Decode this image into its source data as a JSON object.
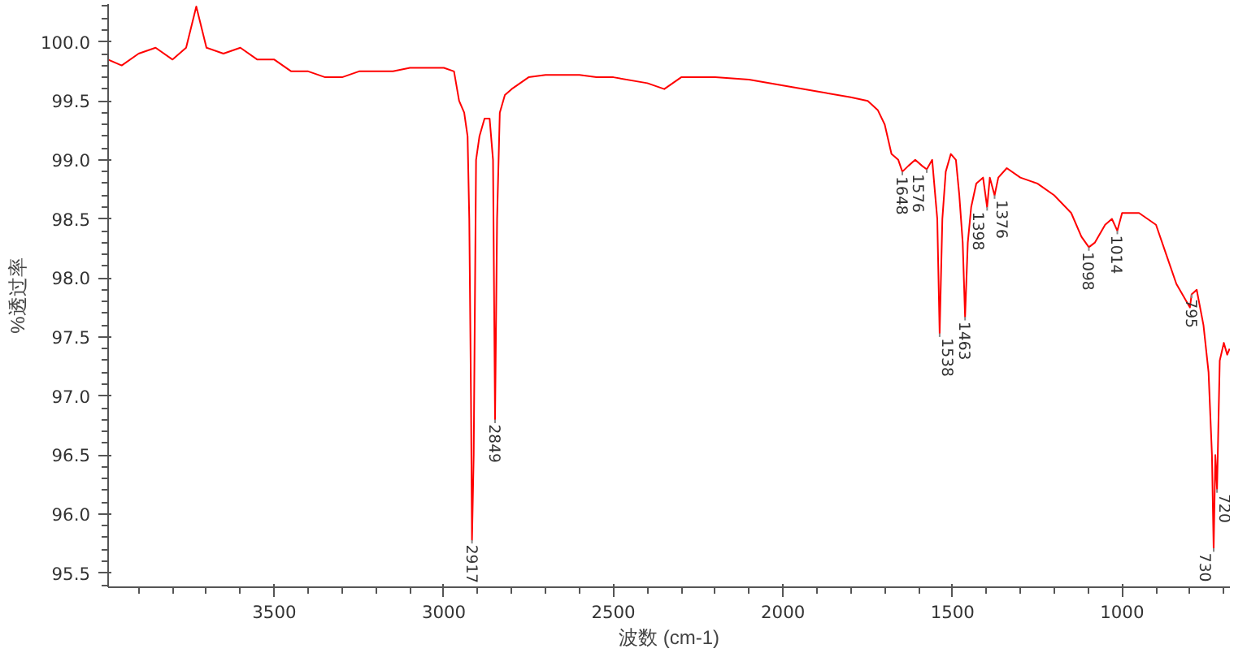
{
  "chart_data": {
    "type": "line",
    "xlabel": "波数 (cm-1)",
    "ylabel": "%透过率",
    "xlim": [
      3990,
      682
    ],
    "ylim": [
      95.38,
      100.32
    ],
    "xticks": [
      3500,
      3000,
      2500,
      2000,
      1500,
      1000
    ],
    "yticks": [
      {
        "value": 95.5,
        "label": "95.5"
      },
      {
        "value": 96,
        "label": "96.0"
      },
      {
        "value": 96.5,
        "label": "96.5"
      },
      {
        "value": 97,
        "label": "97.0"
      },
      {
        "value": 97.5,
        "label": "97.5"
      },
      {
        "value": 98,
        "label": "98.0"
      },
      {
        "value": 98.5,
        "label": "98.5"
      },
      {
        "value": 99,
        "label": "99.0"
      },
      {
        "value": 99.5,
        "label": "99.5"
      },
      {
        "value": 100,
        "label": "100.0"
      }
    ],
    "grid": false,
    "marker": "none",
    "line_style": "solid",
    "series": [
      {
        "color": "#ff0000",
        "x": [
          3990,
          3950,
          3900,
          3850,
          3800,
          3760,
          3730,
          3700,
          3650,
          3600,
          3550,
          3500,
          3450,
          3400,
          3350,
          3300,
          3250,
          3200,
          3150,
          3100,
          3050,
          3000,
          2970,
          2955,
          2940,
          2930,
          2925,
          2920,
          2917,
          2912,
          2905,
          2895,
          2880,
          2865,
          2855,
          2849,
          2843,
          2835,
          2820,
          2800,
          2750,
          2700,
          2600,
          2550,
          2500,
          2400,
          2350,
          2300,
          2200,
          2100,
          2000,
          1900,
          1800,
          1750,
          1720,
          1700,
          1680,
          1660,
          1648,
          1630,
          1610,
          1590,
          1576,
          1560,
          1545,
          1538,
          1530,
          1520,
          1505,
          1490,
          1480,
          1470,
          1463,
          1455,
          1445,
          1430,
          1410,
          1398,
          1390,
          1376,
          1365,
          1340,
          1300,
          1250,
          1200,
          1150,
          1120,
          1098,
          1080,
          1050,
          1030,
          1014,
          1000,
          950,
          900,
          870,
          840,
          800,
          795,
          780,
          760,
          745,
          735,
          730,
          725,
          720,
          712,
          700,
          690,
          683
        ],
        "values": [
          99.85,
          99.8,
          99.9,
          99.95,
          99.85,
          99.95,
          100.3,
          99.95,
          99.9,
          99.95,
          99.85,
          99.85,
          99.75,
          99.75,
          99.7,
          99.7,
          99.75,
          99.75,
          99.75,
          99.78,
          99.78,
          99.78,
          99.75,
          99.5,
          99.4,
          99.2,
          98.5,
          97.0,
          95.78,
          96.5,
          99.0,
          99.2,
          99.35,
          99.35,
          99.0,
          96.8,
          98.5,
          99.4,
          99.55,
          99.6,
          99.7,
          99.72,
          99.72,
          99.7,
          99.7,
          99.65,
          99.6,
          99.7,
          99.7,
          99.68,
          99.63,
          99.58,
          99.53,
          99.5,
          99.42,
          99.3,
          99.05,
          99.0,
          98.9,
          98.95,
          99.0,
          98.95,
          98.92,
          99.0,
          98.5,
          97.53,
          98.5,
          98.9,
          99.05,
          99.0,
          98.7,
          98.3,
          97.67,
          98.3,
          98.6,
          98.8,
          98.85,
          98.6,
          98.85,
          98.7,
          98.85,
          98.93,
          98.85,
          98.8,
          98.7,
          98.55,
          98.35,
          98.26,
          98.3,
          98.45,
          98.5,
          98.4,
          98.55,
          98.55,
          98.45,
          98.2,
          97.95,
          97.75,
          97.86,
          97.9,
          97.6,
          97.2,
          96.5,
          95.71,
          96.5,
          96.21,
          97.3,
          97.45,
          97.35,
          97.4
        ]
      }
    ],
    "annotations": [
      {
        "text": "2917",
        "x": 2917,
        "y": 95.78
      },
      {
        "text": "2849",
        "x": 2849,
        "y": 96.8
      },
      {
        "text": "1648",
        "x": 1648,
        "y": 98.9
      },
      {
        "text": "1576",
        "x": 1576,
        "y": 98.92
      },
      {
        "text": "1538",
        "x": 1538,
        "y": 97.53
      },
      {
        "text": "1463",
        "x": 1463,
        "y": 97.67
      },
      {
        "text": "1398",
        "x": 1398,
        "y": 98.6
      },
      {
        "text": "1376",
        "x": 1376,
        "y": 98.7
      },
      {
        "text": "1098",
        "x": 1098,
        "y": 98.26
      },
      {
        "text": "1014",
        "x": 1014,
        "y": 98.4
      },
      {
        "text": "795",
        "x": 795,
        "y": 97.86
      },
      {
        "text": "730",
        "x": 730,
        "y": 95.71
      },
      {
        "text": "720",
        "x": 720,
        "y": 96.21
      }
    ]
  }
}
